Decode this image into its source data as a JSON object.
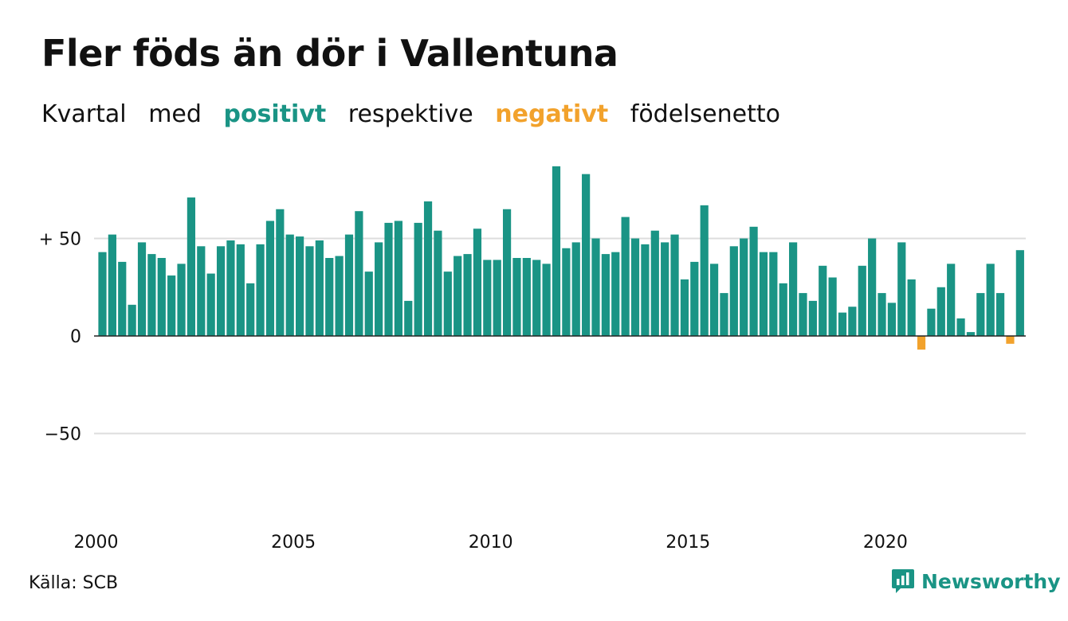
{
  "header": {
    "title": "Fler föds än dör i Vallentuna",
    "subtitle": {
      "part1": "Kvartal",
      "part2": "med",
      "positive": "positivt",
      "part3": "respektive",
      "negative": "negativt",
      "part4": "födelsenetto"
    }
  },
  "footer": {
    "source": "Källa: SCB",
    "brand": "Newsworthy"
  },
  "colors": {
    "positive": "#1a9485",
    "negative": "#f2a22c",
    "grid": "#dddddd",
    "text": "#111111"
  },
  "chart_data": {
    "type": "bar",
    "period": "quarter",
    "x_start": "2000 Q1",
    "ylim": [
      -95,
      100
    ],
    "yticks": [
      50,
      0,
      -50
    ],
    "ytick_labels": [
      "+ 50",
      "0",
      "−50"
    ],
    "xticks": [
      2000,
      2005,
      2010,
      2015,
      2020
    ],
    "xtick_labels": [
      "2000",
      "2005",
      "2010",
      "2015",
      "2020"
    ],
    "grid": true,
    "legend": "none",
    "values": [
      43,
      52,
      38,
      16,
      48,
      42,
      40,
      31,
      37,
      71,
      46,
      32,
      46,
      49,
      47,
      27,
      47,
      59,
      65,
      52,
      51,
      46,
      49,
      40,
      41,
      52,
      64,
      33,
      48,
      58,
      59,
      18,
      58,
      69,
      54,
      33,
      41,
      42,
      55,
      39,
      39,
      65,
      40,
      40,
      39,
      37,
      87,
      45,
      48,
      83,
      50,
      42,
      43,
      61,
      50,
      47,
      54,
      48,
      52,
      29,
      38,
      67,
      37,
      22,
      46,
      50,
      56,
      43,
      43,
      27,
      48,
      22,
      18,
      36,
      30,
      12,
      15,
      36,
      50,
      22,
      17,
      48,
      29,
      -7,
      14,
      25,
      37,
      9,
      2,
      22,
      37,
      22,
      -4,
      44
    ]
  }
}
